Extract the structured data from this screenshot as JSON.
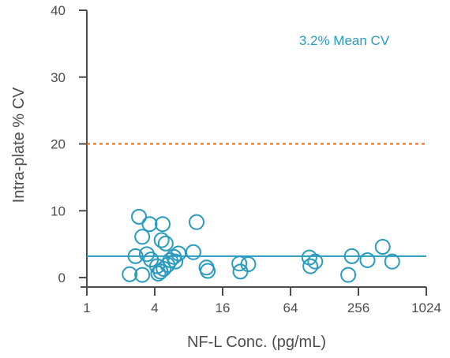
{
  "chart_data": {
    "type": "scatter",
    "xlabel": "NF-L Conc. (pg/mL)",
    "ylabel": "Intra-plate % CV",
    "x_scale": "log2",
    "xlim": [
      1,
      1024
    ],
    "ylim": [
      0,
      40
    ],
    "x_ticks": [
      1,
      4,
      16,
      64,
      256,
      1024
    ],
    "x_tick_labels": [
      "1",
      "4",
      "16",
      "64",
      "256",
      "1024"
    ],
    "y_ticks": [
      0,
      10,
      20,
      30,
      40
    ],
    "y_tick_labels": [
      "0",
      "10",
      "20",
      "30",
      "40"
    ],
    "grid": false,
    "annotation": "3.2% Mean CV",
    "reference_lines": [
      {
        "y": 3.2,
        "style": "solid",
        "color": "#2a9bbf"
      },
      {
        "y": 20,
        "style": "dotted",
        "color": "#e8691e"
      }
    ],
    "marker": {
      "shape": "open-circle",
      "color": "#2a9bbf"
    },
    "points": [
      {
        "x": 2.4,
        "y": 0.5
      },
      {
        "x": 2.7,
        "y": 3.2
      },
      {
        "x": 2.9,
        "y": 9.1
      },
      {
        "x": 3.1,
        "y": 6.1
      },
      {
        "x": 3.1,
        "y": 0.4
      },
      {
        "x": 3.4,
        "y": 3.5
      },
      {
        "x": 3.6,
        "y": 8.0
      },
      {
        "x": 3.7,
        "y": 2.7
      },
      {
        "x": 4.2,
        "y": 1.7
      },
      {
        "x": 4.3,
        "y": 0.6
      },
      {
        "x": 4.5,
        "y": 0.9
      },
      {
        "x": 4.6,
        "y": 5.6
      },
      {
        "x": 4.7,
        "y": 8.0
      },
      {
        "x": 4.8,
        "y": 1.3
      },
      {
        "x": 5.0,
        "y": 5.1
      },
      {
        "x": 5.2,
        "y": 1.9
      },
      {
        "x": 5.5,
        "y": 2.6
      },
      {
        "x": 5.9,
        "y": 3.1
      },
      {
        "x": 6.1,
        "y": 2.4
      },
      {
        "x": 6.5,
        "y": 3.6
      },
      {
        "x": 8.8,
        "y": 3.8
      },
      {
        "x": 9.4,
        "y": 8.3
      },
      {
        "x": 11.5,
        "y": 1.5
      },
      {
        "x": 11.8,
        "y": 1.0
      },
      {
        "x": 22.5,
        "y": 2.1
      },
      {
        "x": 23.0,
        "y": 0.9
      },
      {
        "x": 27.0,
        "y": 2.0
      },
      {
        "x": 94,
        "y": 3.0
      },
      {
        "x": 96,
        "y": 1.7
      },
      {
        "x": 106,
        "y": 2.4
      },
      {
        "x": 208,
        "y": 0.4
      },
      {
        "x": 224,
        "y": 3.2
      },
      {
        "x": 308,
        "y": 2.6
      },
      {
        "x": 420,
        "y": 4.6
      },
      {
        "x": 510,
        "y": 2.4
      }
    ]
  },
  "colors": {
    "axis": "#4d4d4d",
    "series": "#2a9bbf",
    "threshold": "#e8691e"
  }
}
